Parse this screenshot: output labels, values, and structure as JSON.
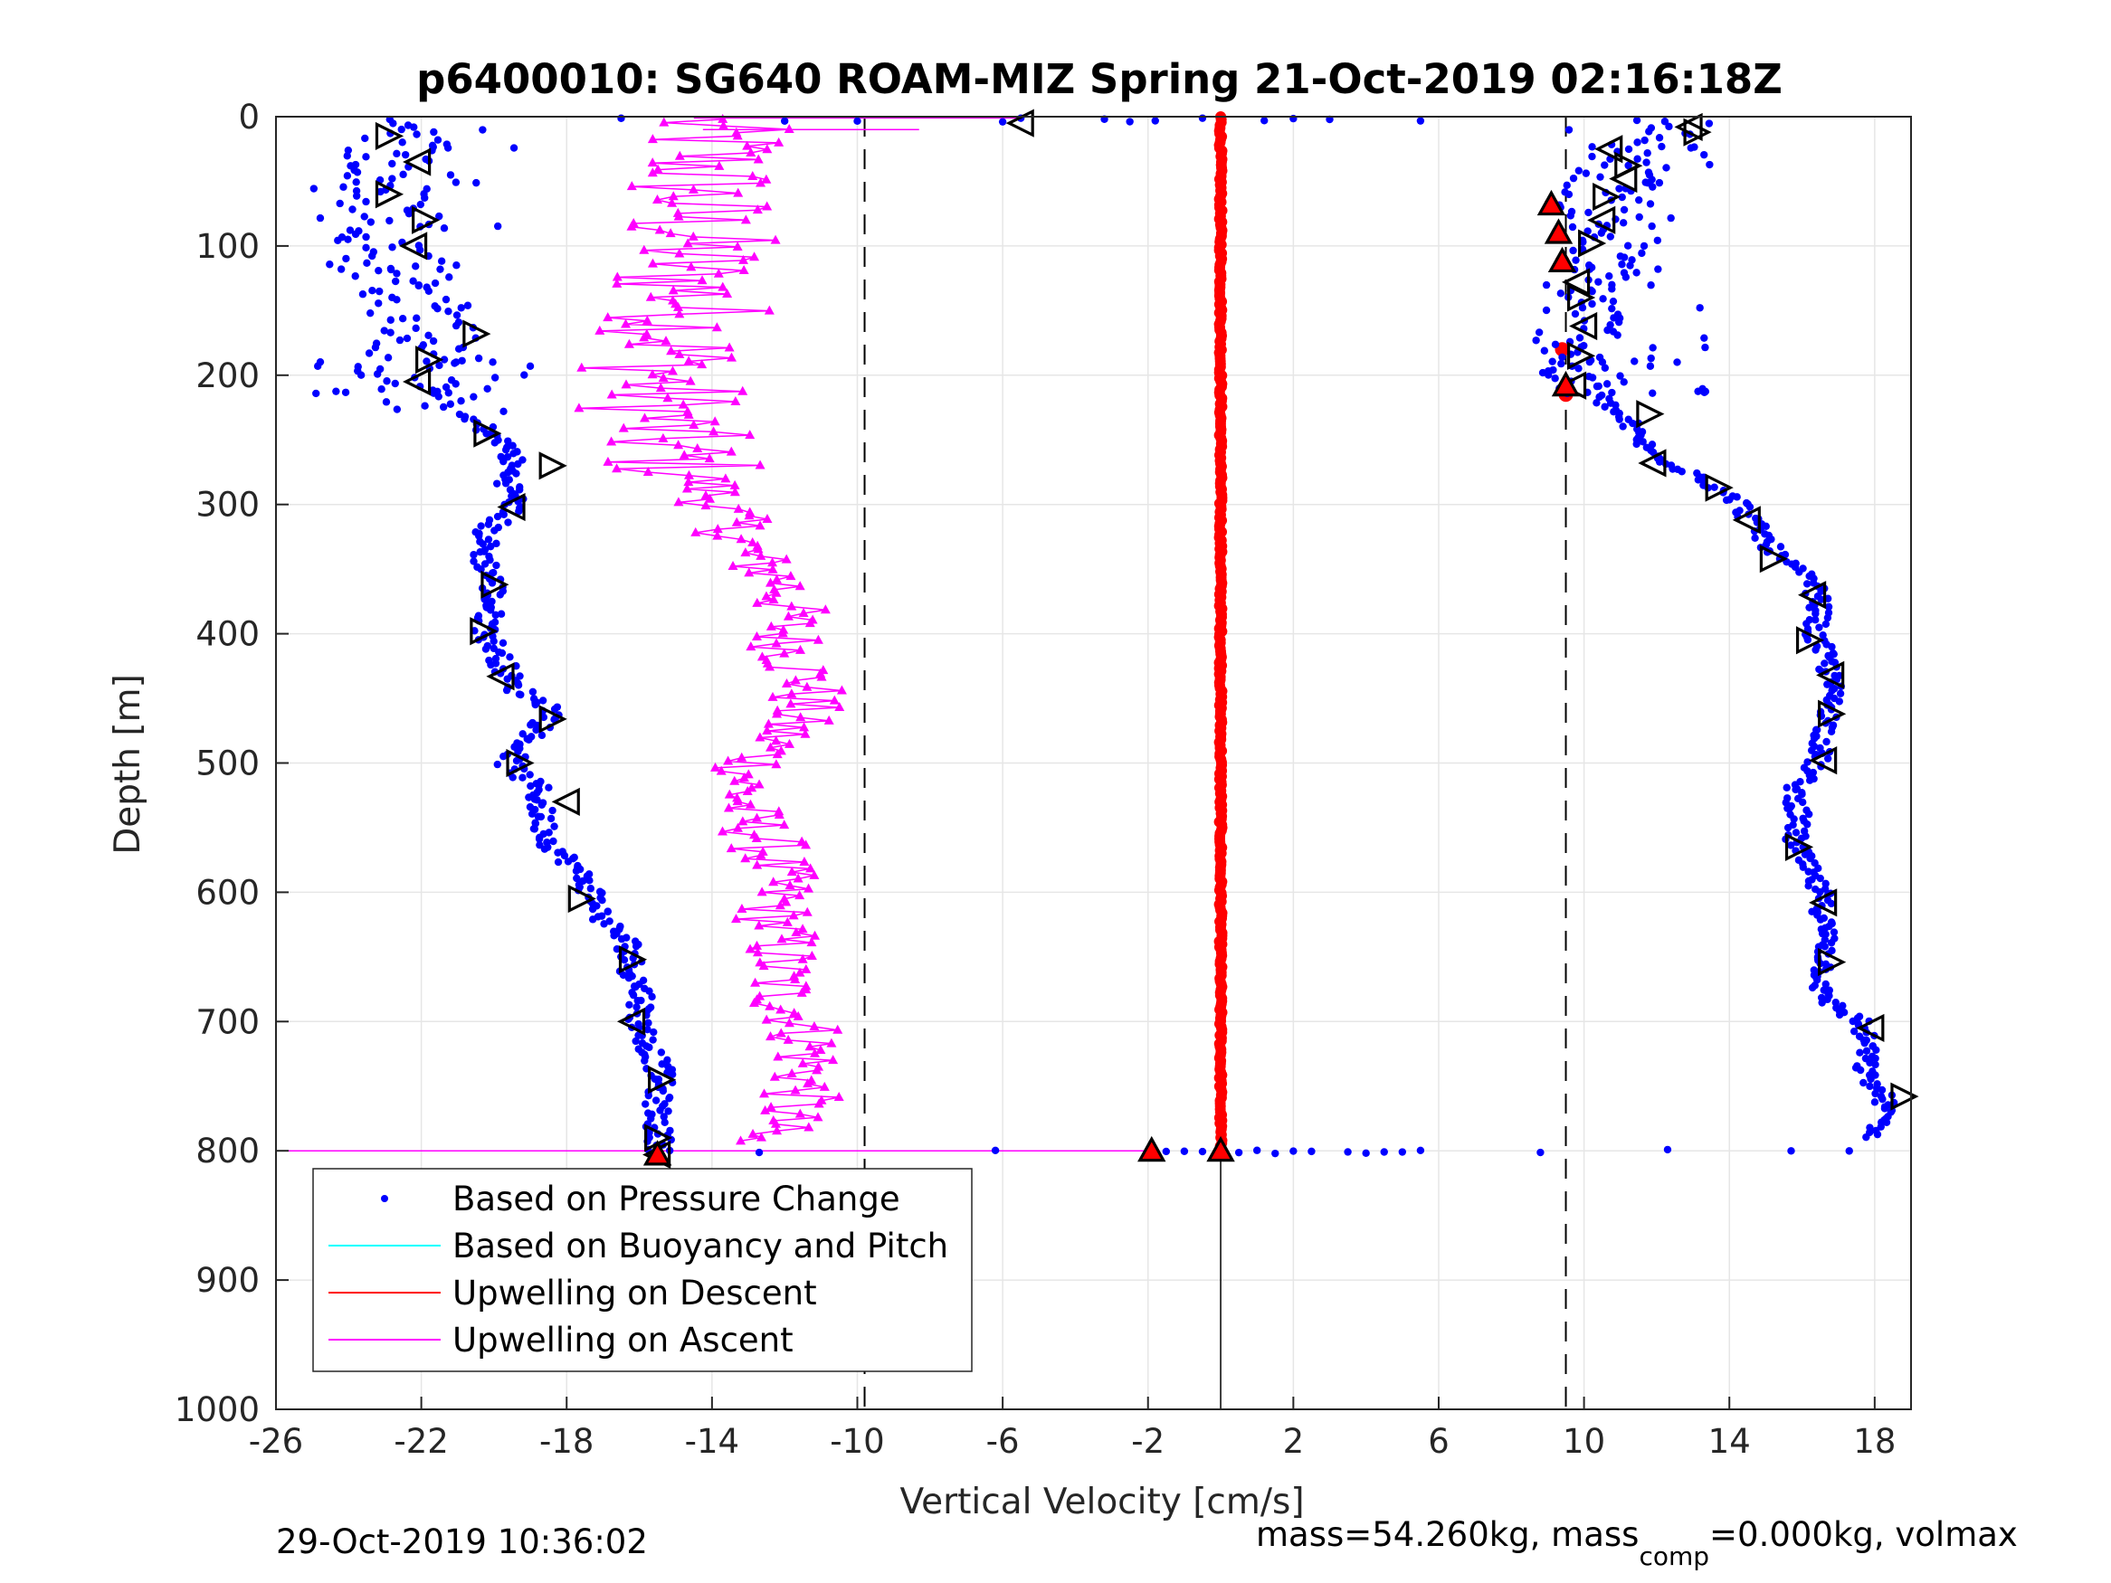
{
  "chart_data": {
    "type": "scatter",
    "title": "p6400010: SG640 ROAM-MIZ Spring 21-Oct-2019 02:16:18Z",
    "xlabel": "Vertical Velocity [cm/s]",
    "ylabel": "Depth [m]",
    "xlim": [
      -26,
      19
    ],
    "ylim": [
      0,
      1000
    ],
    "y_reversed": true,
    "x_ticks": [
      -26,
      -22,
      -18,
      -14,
      -10,
      -6,
      -2,
      2,
      6,
      10,
      14,
      18
    ],
    "y_ticks": [
      0,
      100,
      200,
      300,
      400,
      500,
      600,
      700,
      800,
      900,
      1000
    ],
    "grid": true,
    "legend_location": "bottom-left",
    "reference_lines": [
      {
        "x": -9.8,
        "style": "dashed",
        "color": "#000000"
      },
      {
        "x": 9.5,
        "style": "dashed",
        "color": "#000000"
      }
    ],
    "series": [
      {
        "name": "Based on Pressure Change",
        "color": "#0000ff",
        "marker": "dot",
        "descent_profile": [
          [
            0,
            -21.5
          ],
          [
            20,
            -22.3
          ],
          [
            40,
            -23
          ],
          [
            60,
            -23.2
          ],
          [
            80,
            -22.4
          ],
          [
            100,
            -22.8
          ],
          [
            120,
            -22.5
          ],
          [
            140,
            -22.2
          ],
          [
            160,
            -21.8
          ],
          [
            180,
            -22
          ],
          [
            200,
            -22.6
          ],
          [
            220,
            -21.8
          ],
          [
            240,
            -20.3
          ],
          [
            260,
            -19.5
          ],
          [
            280,
            -19.6
          ],
          [
            300,
            -19.4
          ],
          [
            320,
            -20.2
          ],
          [
            340,
            -20.3
          ],
          [
            360,
            -20
          ],
          [
            380,
            -20.1
          ],
          [
            400,
            -20.2
          ],
          [
            420,
            -19.8
          ],
          [
            440,
            -19.5
          ],
          [
            460,
            -18.3
          ],
          [
            480,
            -19
          ],
          [
            500,
            -19.6
          ],
          [
            520,
            -18.8
          ],
          [
            540,
            -18.7
          ],
          [
            560,
            -18.5
          ],
          [
            580,
            -17.8
          ],
          [
            600,
            -17.3
          ],
          [
            620,
            -17
          ],
          [
            640,
            -16.3
          ],
          [
            660,
            -16.2
          ],
          [
            680,
            -15.9
          ],
          [
            700,
            -16
          ],
          [
            720,
            -15.7
          ],
          [
            740,
            -15.4
          ],
          [
            760,
            -15.5
          ],
          [
            780,
            -15.5
          ],
          [
            800,
            -15.4
          ]
        ],
        "ascent_profile": [
          [
            0,
            13
          ],
          [
            20,
            11.3
          ],
          [
            40,
            11.1
          ],
          [
            60,
            10.6
          ],
          [
            80,
            10.5
          ],
          [
            100,
            10.5
          ],
          [
            120,
            10.3
          ],
          [
            140,
            10
          ],
          [
            160,
            10
          ],
          [
            180,
            9.9
          ],
          [
            200,
            9.7
          ],
          [
            220,
            10.5
          ],
          [
            240,
            11.3
          ],
          [
            260,
            11.8
          ],
          [
            280,
            13.3
          ],
          [
            300,
            14.3
          ],
          [
            320,
            14.8
          ],
          [
            340,
            15.3
          ],
          [
            360,
            16.3
          ],
          [
            380,
            16.5
          ],
          [
            400,
            16.3
          ],
          [
            420,
            16.7
          ],
          [
            440,
            16.8
          ],
          [
            460,
            16.8
          ],
          [
            480,
            16.6
          ],
          [
            500,
            16.4
          ],
          [
            520,
            15.8
          ],
          [
            540,
            15.9
          ],
          [
            560,
            15.8
          ],
          [
            580,
            16.1
          ],
          [
            600,
            16.5
          ],
          [
            620,
            16.6
          ],
          [
            640,
            16.7
          ],
          [
            660,
            16.6
          ],
          [
            680,
            16.5
          ],
          [
            700,
            17.6
          ],
          [
            720,
            17.8
          ],
          [
            740,
            17.7
          ],
          [
            760,
            18.3
          ],
          [
            780,
            18.2
          ],
          [
            790,
            17.8
          ]
        ],
        "surface_scatter_x": [
          -16.5,
          -12,
          -10,
          -6,
          -5.5,
          -3.2,
          -2.5,
          -1.8,
          -0.5,
          1.2,
          2,
          3,
          5.5
        ],
        "bottom_scatter_x": [
          -12.7,
          -6.2,
          -1.5,
          -1,
          -0.5,
          0.5,
          1,
          1.5,
          2,
          2.5,
          3.5,
          4,
          4.5,
          5,
          5.5,
          8.8,
          12.3,
          15.7,
          17.3
        ]
      },
      {
        "name": "Based on Buoyancy and Pitch",
        "color": "#00ffff",
        "marker": "line",
        "x": [],
        "y": []
      },
      {
        "name": "Upwelling on Descent",
        "color": "#ff0000",
        "marker": "circle",
        "x_constant": 0,
        "depth_range": [
          0,
          800
        ],
        "extra_points": [
          [
            180,
            9.4
          ],
          [
            215,
            9.5
          ],
          [
            68,
            9.1
          ],
          [
            90,
            9.3
          ],
          [
            112,
            9.4
          ]
        ]
      },
      {
        "name": "Upwelling on Ascent",
        "color": "#ff00ff",
        "marker": "triangle",
        "profile": [
          [
            0,
            -14.5
          ],
          [
            20,
            -14
          ],
          [
            40,
            -14.2
          ],
          [
            60,
            -14.4
          ],
          [
            80,
            -14.6
          ],
          [
            100,
            -14.5
          ],
          [
            120,
            -14.8
          ],
          [
            140,
            -14.5
          ],
          [
            160,
            -14.6
          ],
          [
            180,
            -15
          ],
          [
            200,
            -15.4
          ],
          [
            220,
            -15.3
          ],
          [
            240,
            -15.4
          ],
          [
            260,
            -15.2
          ],
          [
            280,
            -14.3
          ],
          [
            300,
            -13.8
          ],
          [
            320,
            -13.4
          ],
          [
            340,
            -13
          ],
          [
            360,
            -12
          ],
          [
            380,
            -11.9
          ],
          [
            400,
            -12
          ],
          [
            420,
            -11.7
          ],
          [
            440,
            -11.3
          ],
          [
            460,
            -11.6
          ],
          [
            480,
            -12.2
          ],
          [
            500,
            -12.8
          ],
          [
            520,
            -13.2
          ],
          [
            540,
            -13.1
          ],
          [
            560,
            -12.5
          ],
          [
            580,
            -12.3
          ],
          [
            600,
            -12.2
          ],
          [
            620,
            -12.3
          ],
          [
            640,
            -12.1
          ],
          [
            660,
            -12.2
          ],
          [
            680,
            -12.1
          ],
          [
            700,
            -11.5
          ],
          [
            720,
            -11.3
          ],
          [
            740,
            -11.4
          ],
          [
            760,
            -11.6
          ],
          [
            780,
            -12.2
          ],
          [
            795,
            -13.5
          ]
        ],
        "spikes": [
          [
            0,
            -17.8
          ],
          [
            10,
            -8.3
          ],
          [
            800,
            -26
          ],
          [
            800,
            -18.5
          ],
          [
            800,
            -2
          ]
        ]
      }
    ],
    "markers": {
      "open_triangles_descent": [
        [
          15,
          -22.9
        ],
        [
          35,
          -22.1
        ],
        [
          60,
          -22.9
        ],
        [
          80,
          -21.9
        ],
        [
          100,
          -22.2
        ],
        [
          168,
          -20.5
        ],
        [
          188,
          -21.8
        ],
        [
          205,
          -22.1
        ],
        [
          245,
          -20.2
        ],
        [
          270,
          -18.4
        ],
        [
          302,
          -19.5
        ],
        [
          362,
          -20
        ],
        [
          398,
          -20.3
        ],
        [
          433,
          -19.8
        ],
        [
          466,
          -18.4
        ],
        [
          500,
          -19.3
        ],
        [
          530,
          -18
        ],
        [
          605,
          -17.6
        ],
        [
          652,
          -16.2
        ],
        [
          700,
          -16.2
        ],
        [
          745,
          -15.4
        ],
        [
          790,
          -15.5
        ],
        [
          803,
          -15.5
        ]
      ],
      "open_triangles_ascent": [
        [
          8,
          12.9
        ],
        [
          12,
          13.1
        ],
        [
          25,
          10.7
        ],
        [
          38,
          11.2
        ],
        [
          48,
          11.1
        ],
        [
          62,
          10.6
        ],
        [
          80,
          10.5
        ],
        [
          98,
          10.2
        ],
        [
          128,
          9.8
        ],
        [
          140,
          9.9
        ],
        [
          162,
          10
        ],
        [
          185,
          9.9
        ],
        [
          208,
          9.7
        ],
        [
          230,
          11.8
        ],
        [
          268,
          11.9
        ],
        [
          287,
          13.7
        ],
        [
          312,
          14.5
        ],
        [
          342,
          15.2
        ],
        [
          370,
          16.3
        ],
        [
          405,
          16.2
        ],
        [
          432,
          16.8
        ],
        [
          462,
          16.8
        ],
        [
          498,
          16.6
        ],
        [
          565,
          15.9
        ],
        [
          608,
          16.6
        ],
        [
          654,
          16.8
        ],
        [
          705,
          17.9
        ],
        [
          758,
          18.8
        ],
        [
          5,
          -5.5
        ]
      ],
      "filled_red_triangles": [
        [
          803,
          -15.5
        ],
        [
          800,
          -1.9
        ],
        [
          800,
          0
        ],
        [
          68,
          9.1
        ],
        [
          90,
          9.3
        ],
        [
          112,
          9.4
        ],
        [
          208,
          9.5
        ]
      ]
    },
    "legend": [
      "Based on Pressure Change",
      "Based on Buoyancy and Pitch",
      "Upwelling on Descent",
      "Upwelling on Ascent"
    ]
  },
  "footer": {
    "timestamp": "29-Oct-2019 10:36:02",
    "mass_text_a": "mass=54.260kg, mass",
    "mass_sub": "comp",
    "mass_text_b": "=0.000kg, volmax"
  }
}
